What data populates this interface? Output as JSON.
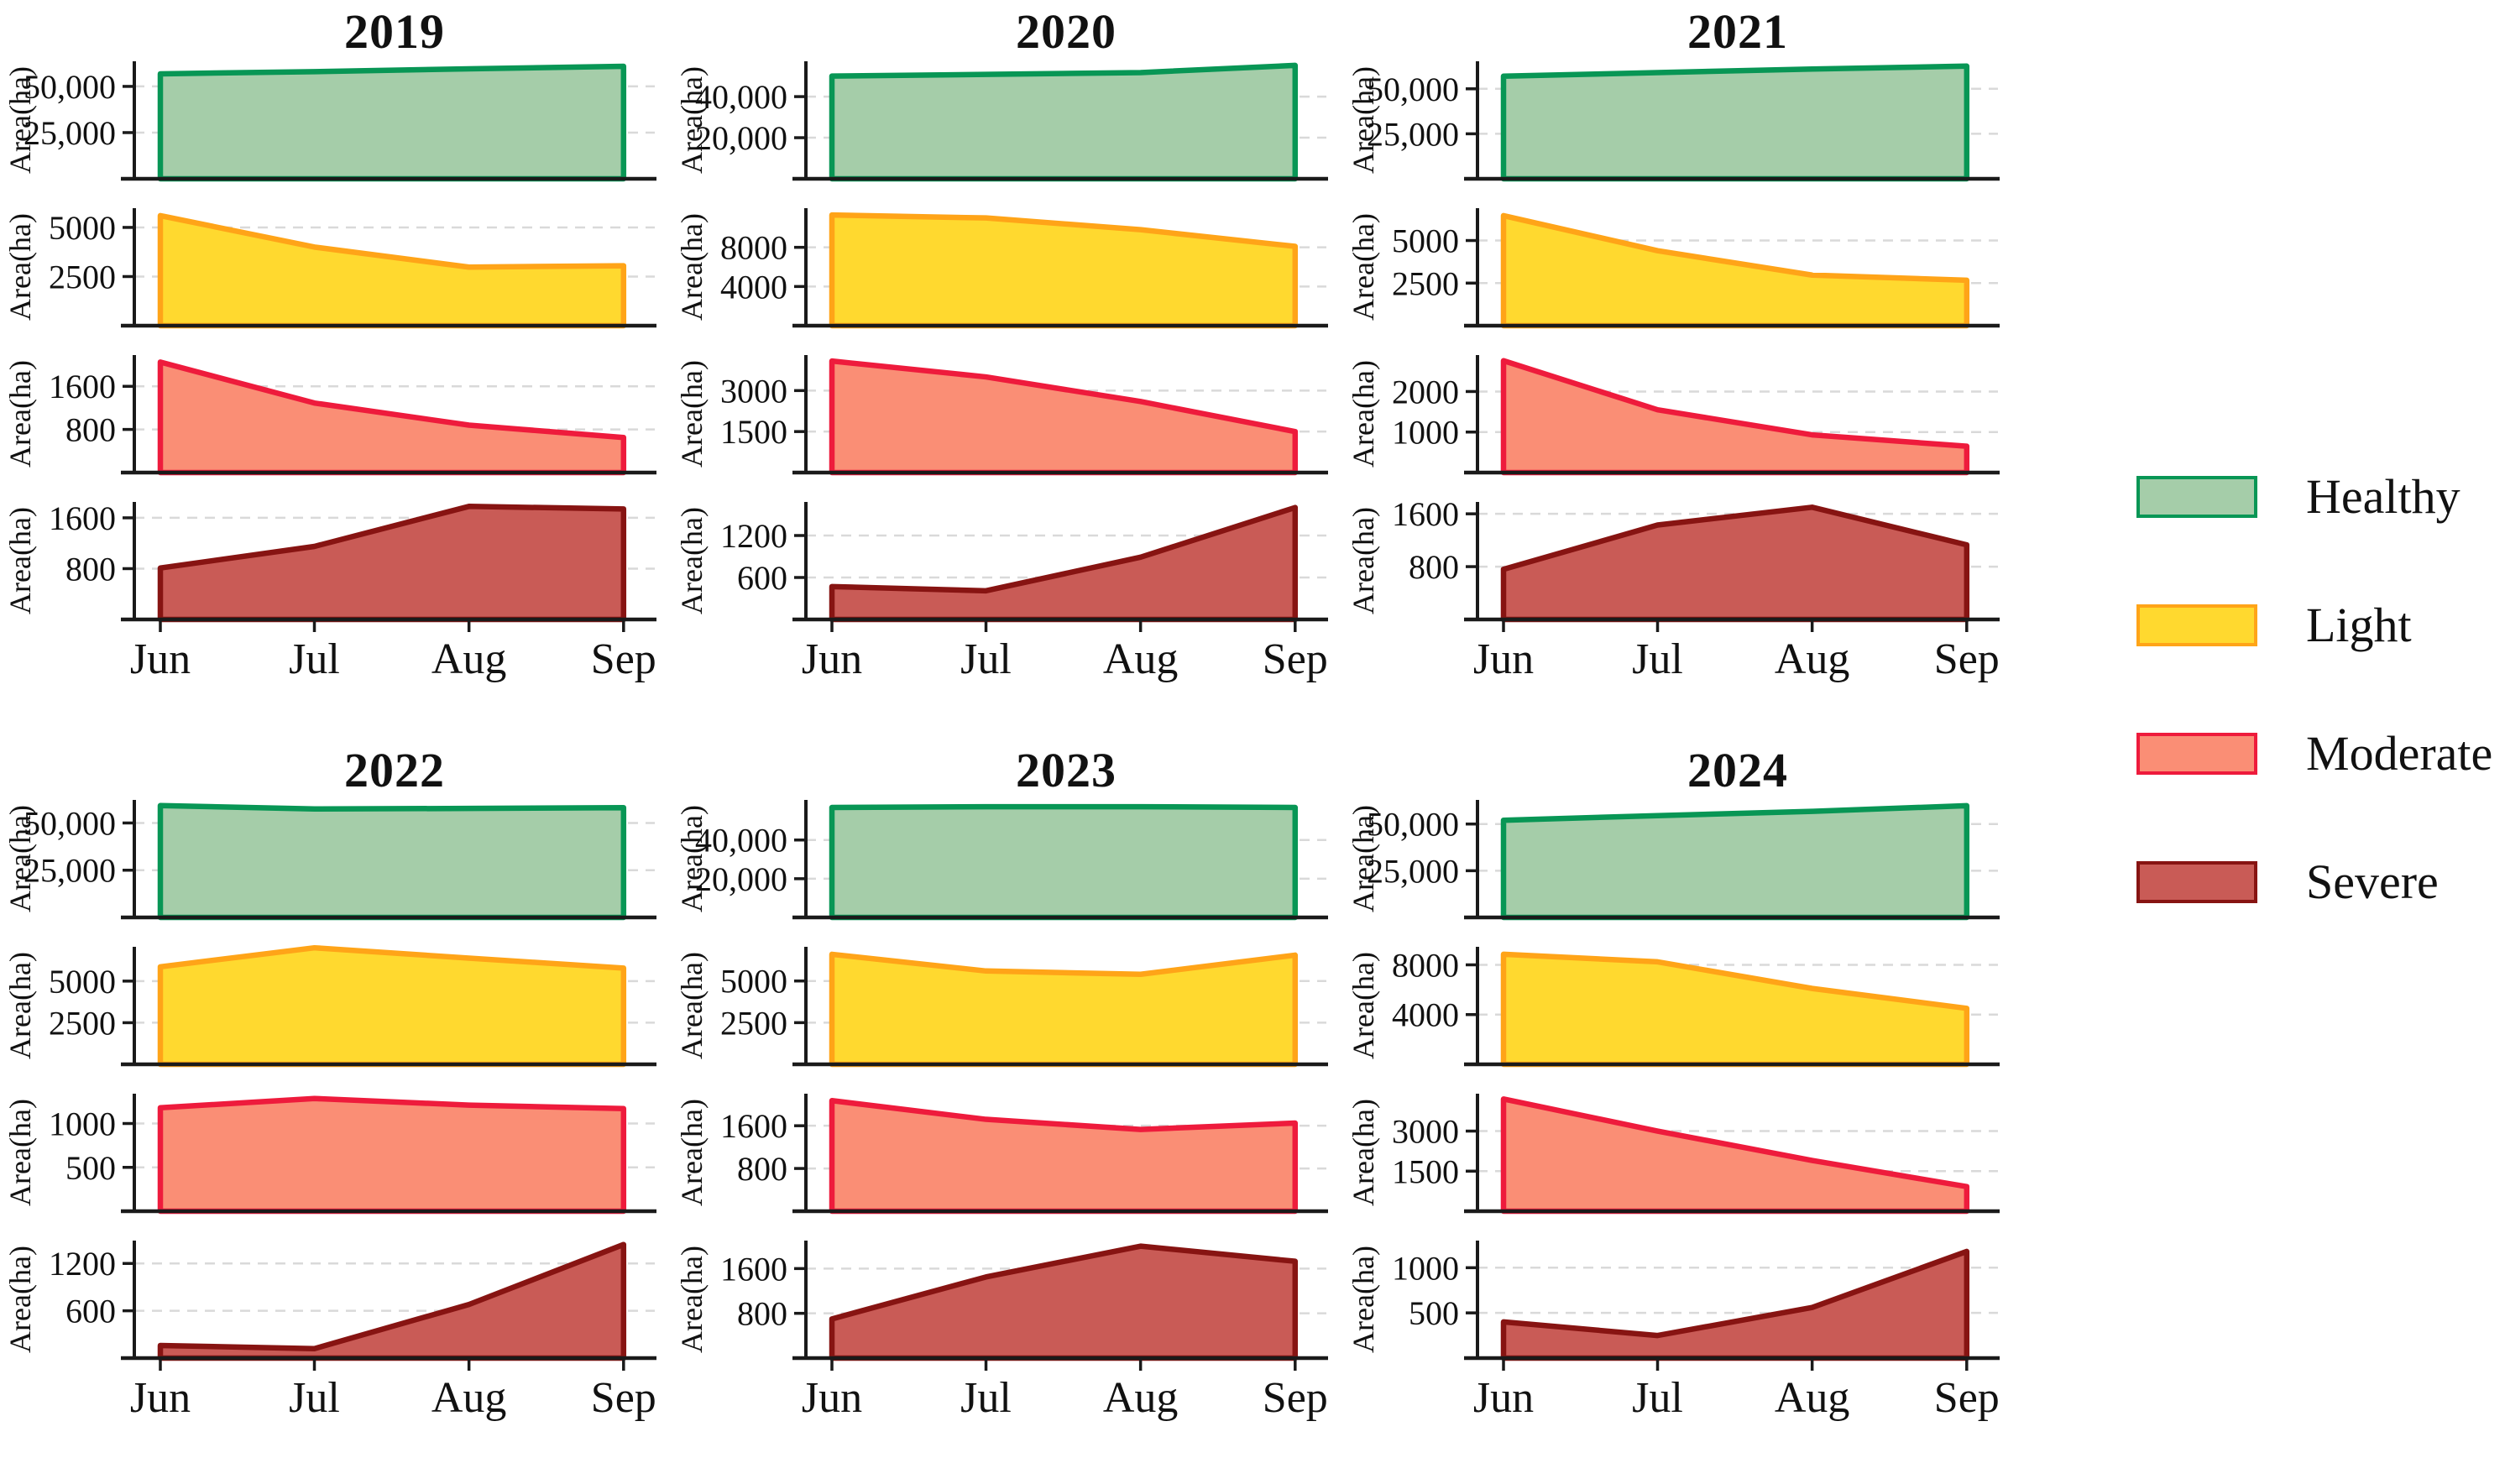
{
  "ylabel": "Area(ha)",
  "months": [
    "Jun",
    "Jul",
    "Aug",
    "Sep"
  ],
  "legend": {
    "items": [
      {
        "label": "Healthy",
        "fill": "#A5CDA9",
        "line": "#089655"
      },
      {
        "label": "Light",
        "fill": "#FFD92F",
        "line": "#FFA418"
      },
      {
        "label": "Moderate",
        "fill": "#FA8E75",
        "line": "#EE1B3C"
      },
      {
        "label": "Severe",
        "fill": "#C95B56",
        "line": "#871412"
      }
    ]
  },
  "chart_data": [
    {
      "type": "area",
      "title": "2019",
      "x": [
        "Jun",
        "Jul",
        "Aug",
        "Sep"
      ],
      "series": [
        {
          "name": "Healthy",
          "values": [
            56800,
            58000,
            59500,
            60900
          ],
          "ylim": [
            0,
            63600
          ],
          "yticks": [
            25000,
            50000
          ],
          "ytick_labels": [
            "25,000",
            "50,000"
          ]
        },
        {
          "name": "Light",
          "values": [
            5600,
            4000,
            2980,
            3050
          ],
          "ylim": [
            0,
            5980
          ],
          "yticks": [
            2500,
            5000
          ],
          "ytick_labels": [
            "2500",
            "5000"
          ]
        },
        {
          "name": "Moderate",
          "values": [
            2050,
            1290,
            880,
            650
          ],
          "ylim": [
            0,
            2180
          ],
          "yticks": [
            800,
            1600
          ],
          "ytick_labels": [
            "800",
            "1600"
          ]
        },
        {
          "name": "Severe",
          "values": [
            810,
            1150,
            1780,
            1740
          ],
          "ylim": [
            0,
            1850
          ],
          "yticks": [
            800,
            1600
          ],
          "ytick_labels": [
            "800",
            "1600"
          ]
        }
      ]
    },
    {
      "type": "area",
      "title": "2020",
      "x": [
        "Jun",
        "Jul",
        "Aug",
        "Sep"
      ],
      "series": [
        {
          "name": "Healthy",
          "values": [
            50000,
            50800,
            51700,
            55200
          ],
          "ylim": [
            0,
            57200
          ],
          "yticks": [
            20000,
            40000
          ],
          "ytick_labels": [
            "20,000",
            "40,000"
          ]
        },
        {
          "name": "Light",
          "values": [
            11300,
            11000,
            9800,
            8100
          ],
          "ylim": [
            0,
            12000
          ],
          "yticks": [
            4000,
            8000
          ],
          "ytick_labels": [
            "4000",
            "8000"
          ]
        },
        {
          "name": "Moderate",
          "values": [
            4080,
            3500,
            2600,
            1500
          ],
          "ylim": [
            0,
            4300
          ],
          "yticks": [
            1500,
            3000
          ],
          "ytick_labels": [
            "1500",
            "3000"
          ]
        },
        {
          "name": "Severe",
          "values": [
            470,
            410,
            890,
            1600
          ],
          "ylim": [
            0,
            1680
          ],
          "yticks": [
            600,
            1200
          ],
          "ytick_labels": [
            "600",
            "1200"
          ]
        }
      ]
    },
    {
      "type": "area",
      "title": "2021",
      "x": [
        "Jun",
        "Jul",
        "Aug",
        "Sep"
      ],
      "series": [
        {
          "name": "Healthy",
          "values": [
            57000,
            59000,
            61000,
            62600
          ],
          "ylim": [
            0,
            65300
          ],
          "yticks": [
            25000,
            50000
          ],
          "ytick_labels": [
            "25,000",
            "50,000"
          ]
        },
        {
          "name": "Light",
          "values": [
            6460,
            4400,
            2970,
            2670
          ],
          "ylim": [
            0,
            6900
          ],
          "yticks": [
            2500,
            5000
          ],
          "ytick_labels": [
            "2500",
            "5000"
          ]
        },
        {
          "name": "Moderate",
          "values": [
            2760,
            1550,
            930,
            650
          ],
          "ylim": [
            0,
            2900
          ],
          "yticks": [
            1000,
            2000
          ],
          "ytick_labels": [
            "1000",
            "2000"
          ]
        },
        {
          "name": "Severe",
          "values": [
            760,
            1430,
            1700,
            1130
          ],
          "ylim": [
            0,
            1780
          ],
          "yticks": [
            800,
            1600
          ],
          "ytick_labels": [
            "800",
            "1600"
          ]
        }
      ]
    },
    {
      "type": "area",
      "title": "2022",
      "x": [
        "Jun",
        "Jul",
        "Aug",
        "Sep"
      ],
      "series": [
        {
          "name": "Healthy",
          "values": [
            59200,
            57400,
            57700,
            58100
          ],
          "ylim": [
            0,
            62200
          ],
          "yticks": [
            25000,
            50000
          ],
          "ytick_labels": [
            "25,000",
            "50,000"
          ]
        },
        {
          "name": "Light",
          "values": [
            5860,
            7000,
            6380,
            5780
          ],
          "ylim": [
            0,
            7060
          ],
          "yticks": [
            2500,
            5000
          ],
          "ytick_labels": [
            "2500",
            "5000"
          ]
        },
        {
          "name": "Moderate",
          "values": [
            1180,
            1285,
            1210,
            1170
          ],
          "ylim": [
            0,
            1340
          ],
          "yticks": [
            500,
            1000
          ],
          "ytick_labels": [
            "500",
            "1000"
          ]
        },
        {
          "name": "Severe",
          "values": [
            160,
            120,
            680,
            1440
          ],
          "ylim": [
            0,
            1490
          ],
          "yticks": [
            600,
            1200
          ],
          "ytick_labels": [
            "600",
            "1200"
          ]
        }
      ]
    },
    {
      "type": "area",
      "title": "2023",
      "x": [
        "Jun",
        "Jul",
        "Aug",
        "Sep"
      ],
      "series": [
        {
          "name": "Healthy",
          "values": [
            56800,
            57200,
            57200,
            56800
          ],
          "ylim": [
            0,
            60700
          ],
          "yticks": [
            20000,
            40000
          ],
          "ytick_labels": [
            "20,000",
            "40,000"
          ]
        },
        {
          "name": "Light",
          "values": [
            6600,
            5600,
            5400,
            6550
          ],
          "ylim": [
            0,
            7050
          ],
          "yticks": [
            2500,
            5000
          ],
          "ytick_labels": [
            "2500",
            "5000"
          ]
        },
        {
          "name": "Moderate",
          "values": [
            2070,
            1720,
            1530,
            1650
          ],
          "ylim": [
            0,
            2200
          ],
          "yticks": [
            800,
            1600
          ],
          "ytick_labels": [
            "800",
            "1600"
          ]
        },
        {
          "name": "Severe",
          "values": [
            700,
            1450,
            2000,
            1730
          ],
          "ylim": [
            0,
            2100
          ],
          "yticks": [
            800,
            1600
          ],
          "ytick_labels": [
            "800",
            "1600"
          ]
        }
      ]
    },
    {
      "type": "area",
      "title": "2024",
      "x": [
        "Jun",
        "Jul",
        "Aug",
        "Sep"
      ],
      "series": [
        {
          "name": "Healthy",
          "values": [
            52000,
            54500,
            56800,
            59800
          ],
          "ylim": [
            0,
            62900
          ],
          "yticks": [
            25000,
            50000
          ],
          "ytick_labels": [
            "25,000",
            "50,000"
          ]
        },
        {
          "name": "Light",
          "values": [
            8850,
            8240,
            6100,
            4500
          ],
          "ylim": [
            0,
            9450
          ],
          "yticks": [
            4000,
            8000
          ],
          "ytick_labels": [
            "4000",
            "8000"
          ]
        },
        {
          "name": "Moderate",
          "values": [
            4200,
            3000,
            1900,
            920
          ],
          "ylim": [
            0,
            4400
          ],
          "yticks": [
            1500,
            3000
          ],
          "ytick_labels": [
            "1500",
            "3000"
          ]
        },
        {
          "name": "Severe",
          "values": [
            400,
            250,
            560,
            1180
          ],
          "ylim": [
            0,
            1300
          ],
          "yticks": [
            500,
            1000
          ],
          "ytick_labels": [
            "500",
            "1000"
          ]
        }
      ]
    }
  ],
  "style": {
    "grid_color": "#d9d9d9",
    "spine_color": "#1a1a1a",
    "background": "#ffffff"
  }
}
